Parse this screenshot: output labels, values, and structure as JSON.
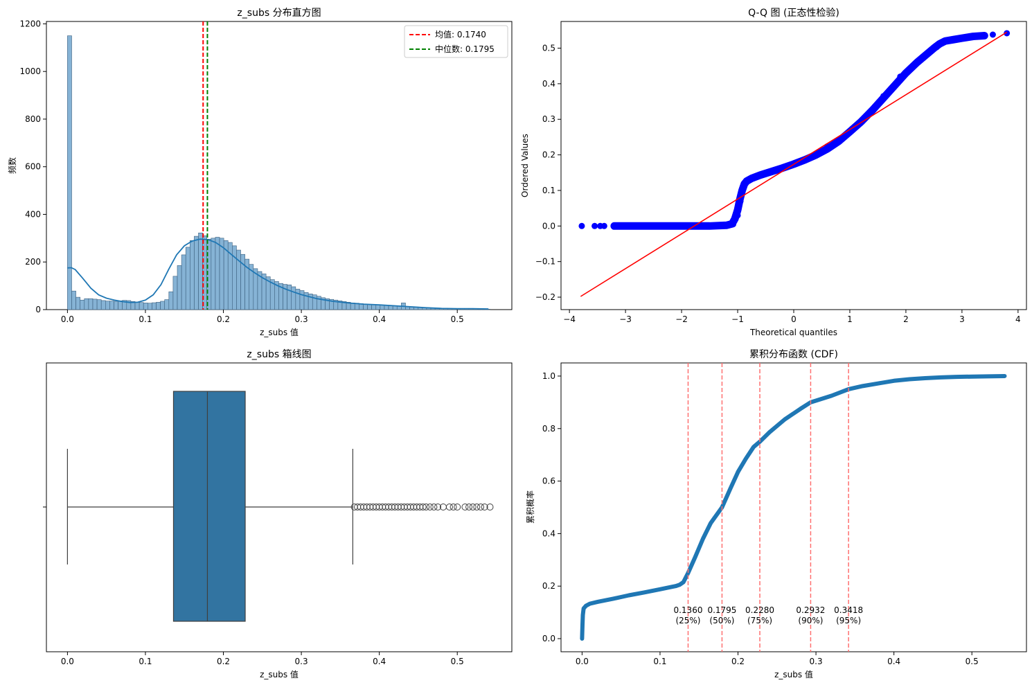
{
  "chart_data": [
    {
      "type": "histogram",
      "title": "z_subs 分布直方图",
      "xlabel": "z_subs 值",
      "ylabel": "频数",
      "xlim": [
        -0.027,
        0.57
      ],
      "ylim": [
        0,
        1210
      ],
      "xticks": [
        0.0,
        0.1,
        0.2,
        0.3,
        0.4,
        0.5
      ],
      "xtick_labels": [
        "0.0",
        "0.1",
        "0.2",
        "0.3",
        "0.4",
        "0.5"
      ],
      "yticks": [
        0,
        200,
        400,
        600,
        800,
        1000,
        1200
      ],
      "ytick_labels": [
        "0",
        "200",
        "400",
        "600",
        "800",
        "1000",
        "1200"
      ],
      "bin_start": 0.0,
      "bin_width": 0.00542,
      "counts": [
        1150,
        78,
        52,
        40,
        46,
        46,
        44,
        42,
        38,
        36,
        36,
        35,
        37,
        39,
        38,
        34,
        32,
        30,
        28,
        27,
        29,
        31,
        35,
        42,
        75,
        140,
        185,
        230,
        262,
        290,
        308,
        322,
        310,
        296,
        300,
        304,
        300,
        290,
        282,
        268,
        250,
        232,
        212,
        190,
        172,
        160,
        150,
        138,
        126,
        118,
        110,
        106,
        104,
        96,
        86,
        80,
        72,
        66,
        62,
        56,
        50,
        46,
        43,
        40,
        37,
        34,
        31,
        28,
        27,
        25,
        23,
        22,
        21,
        20,
        19,
        18,
        16,
        16,
        14,
        28,
        13,
        12,
        11,
        10,
        9,
        8,
        7,
        6,
        6,
        5,
        5,
        4,
        4,
        4,
        3,
        3,
        3,
        2,
        2,
        2
      ],
      "kde": [
        [
          0.0,
          175
        ],
        [
          0.005,
          176
        ],
        [
          0.01,
          168
        ],
        [
          0.02,
          130
        ],
        [
          0.03,
          90
        ],
        [
          0.04,
          62
        ],
        [
          0.05,
          48
        ],
        [
          0.06,
          40
        ],
        [
          0.07,
          34
        ],
        [
          0.08,
          30
        ],
        [
          0.09,
          31
        ],
        [
          0.1,
          40
        ],
        [
          0.11,
          62
        ],
        [
          0.12,
          105
        ],
        [
          0.13,
          170
        ],
        [
          0.14,
          230
        ],
        [
          0.15,
          268
        ],
        [
          0.16,
          288
        ],
        [
          0.17,
          296
        ],
        [
          0.18,
          294
        ],
        [
          0.19,
          282
        ],
        [
          0.2,
          260
        ],
        [
          0.21,
          232
        ],
        [
          0.22,
          205
        ],
        [
          0.23,
          178
        ],
        [
          0.24,
          155
        ],
        [
          0.25,
          134
        ],
        [
          0.26,
          116
        ],
        [
          0.27,
          100
        ],
        [
          0.28,
          86
        ],
        [
          0.29,
          74
        ],
        [
          0.3,
          63
        ],
        [
          0.32,
          46
        ],
        [
          0.34,
          35
        ],
        [
          0.36,
          28
        ],
        [
          0.38,
          23
        ],
        [
          0.4,
          20
        ],
        [
          0.42,
          16
        ],
        [
          0.44,
          12
        ],
        [
          0.46,
          8
        ],
        [
          0.48,
          5
        ],
        [
          0.5,
          4
        ],
        [
          0.52,
          4
        ],
        [
          0.54,
          3
        ]
      ],
      "vlines": [
        {
          "label": "均值: 0.1740",
          "x": 0.174,
          "color": "#ff0000"
        },
        {
          "label": "中位数: 0.1795",
          "x": 0.1795,
          "color": "#008000"
        }
      ],
      "colors": {
        "bar": "#86b3d5",
        "edge": "#3b5f7e",
        "kde": "#1f77b4"
      }
    },
    {
      "type": "scatter",
      "title": "Q-Q 图 (正态性检验)",
      "xlabel": "Theoretical quantiles",
      "ylabel": "Ordered Values",
      "xlim": [
        -4.15,
        4.15
      ],
      "ylim": [
        -0.235,
        0.575
      ],
      "xticks": [
        -4,
        -3,
        -2,
        -1,
        0,
        1,
        2,
        3,
        4
      ],
      "xtick_labels": [
        "−4",
        "−3",
        "−2",
        "−1",
        "0",
        "1",
        "2",
        "3",
        "4"
      ],
      "yticks": [
        -0.2,
        -0.1,
        0.0,
        0.1,
        0.2,
        0.3,
        0.4,
        0.5
      ],
      "ytick_labels": [
        "−0.2",
        "−0.1",
        "0.0",
        "0.1",
        "0.2",
        "0.3",
        "0.4",
        "0.5"
      ],
      "points": [
        [
          -3.78,
          0.0
        ],
        [
          -3.55,
          0.0
        ],
        [
          -3.45,
          0.0
        ],
        [
          -3.38,
          0.0
        ],
        [
          -1.08,
          0.005
        ],
        [
          -1.0,
          0.03
        ],
        [
          -0.95,
          0.07
        ],
        [
          -0.9,
          0.105
        ],
        [
          -0.86,
          0.12
        ],
        [
          -0.8,
          0.128
        ],
        [
          -0.7,
          0.136
        ],
        [
          -0.5,
          0.148
        ],
        [
          -0.2,
          0.163
        ],
        [
          0.0,
          0.174
        ],
        [
          0.3,
          0.195
        ],
        [
          0.6,
          0.224
        ],
        [
          1.0,
          0.265
        ],
        [
          1.3,
          0.31
        ],
        [
          1.6,
          0.365
        ],
        [
          1.9,
          0.42
        ],
        [
          2.2,
          0.46
        ],
        [
          2.35,
          0.48
        ],
        [
          2.55,
          0.503
        ],
        [
          2.7,
          0.52
        ],
        [
          2.9,
          0.525
        ],
        [
          3.1,
          0.532
        ],
        [
          3.2,
          0.534
        ],
        [
          3.4,
          0.536
        ],
        [
          3.55,
          0.538
        ],
        [
          3.8,
          0.542
        ]
      ],
      "curve": [
        [
          -3.2,
          0.0
        ],
        [
          -2.0,
          0.0
        ],
        [
          -1.5,
          0.0
        ],
        [
          -1.2,
          0.002
        ],
        [
          -1.1,
          0.006
        ],
        [
          -1.05,
          0.02
        ],
        [
          -1.0,
          0.045
        ],
        [
          -0.96,
          0.075
        ],
        [
          -0.92,
          0.1
        ],
        [
          -0.88,
          0.118
        ],
        [
          -0.84,
          0.126
        ],
        [
          -0.75,
          0.134
        ],
        [
          -0.6,
          0.143
        ],
        [
          -0.4,
          0.153
        ],
        [
          -0.2,
          0.163
        ],
        [
          0.0,
          0.174
        ],
        [
          0.2,
          0.186
        ],
        [
          0.4,
          0.2
        ],
        [
          0.6,
          0.217
        ],
        [
          0.8,
          0.238
        ],
        [
          1.0,
          0.265
        ],
        [
          1.2,
          0.293
        ],
        [
          1.4,
          0.325
        ],
        [
          1.6,
          0.36
        ],
        [
          1.8,
          0.395
        ],
        [
          2.0,
          0.43
        ],
        [
          2.2,
          0.46
        ],
        [
          2.35,
          0.48
        ],
        [
          2.5,
          0.5
        ],
        [
          2.6,
          0.512
        ],
        [
          2.7,
          0.52
        ],
        [
          2.85,
          0.524
        ],
        [
          3.0,
          0.528
        ],
        [
          3.2,
          0.533
        ],
        [
          3.4,
          0.535
        ]
      ],
      "fit_line": [
        [
          -3.8,
          -0.198
        ],
        [
          3.8,
          0.545
        ]
      ],
      "colors": {
        "points": "#0000ff",
        "line": "#ff0000"
      }
    },
    {
      "type": "boxplot",
      "title": "z_subs 箱线图",
      "xlabel": "z_subs 值",
      "xlim": [
        -0.027,
        0.57
      ],
      "xticks": [
        0.0,
        0.1,
        0.2,
        0.3,
        0.4,
        0.5
      ],
      "xtick_labels": [
        "0.0",
        "0.1",
        "0.2",
        "0.3",
        "0.4",
        "0.5"
      ],
      "whisker_low": 0.0,
      "q1": 0.136,
      "median": 0.1795,
      "q3": 0.228,
      "whisker_high": 0.366,
      "outliers": [
        0.368,
        0.372,
        0.376,
        0.38,
        0.384,
        0.388,
        0.392,
        0.396,
        0.4,
        0.404,
        0.408,
        0.412,
        0.416,
        0.42,
        0.424,
        0.428,
        0.432,
        0.436,
        0.44,
        0.444,
        0.448,
        0.452,
        0.456,
        0.46,
        0.465,
        0.47,
        0.475,
        0.482,
        0.49,
        0.495,
        0.5,
        0.51,
        0.515,
        0.52,
        0.525,
        0.53,
        0.535,
        0.542
      ],
      "colors": {
        "box": "#3274a1",
        "line": "#3f3f3f"
      }
    },
    {
      "type": "line",
      "title": "累积分布函数 (CDF)",
      "xlabel": "z_subs 值",
      "ylabel": "累积概率",
      "xlim": [
        -0.027,
        0.57
      ],
      "ylim": [
        -0.05,
        1.05
      ],
      "xticks": [
        0.0,
        0.1,
        0.2,
        0.3,
        0.4,
        0.5
      ],
      "xtick_labels": [
        "0.0",
        "0.1",
        "0.2",
        "0.3",
        "0.4",
        "0.5"
      ],
      "yticks": [
        0.0,
        0.2,
        0.4,
        0.6,
        0.8,
        1.0
      ],
      "ytick_labels": [
        "0.0",
        "0.2",
        "0.4",
        "0.6",
        "0.8",
        "1.0"
      ],
      "curve": [
        [
          0.0,
          0.0
        ],
        [
          0.0005,
          0.05
        ],
        [
          0.001,
          0.09
        ],
        [
          0.002,
          0.115
        ],
        [
          0.005,
          0.125
        ],
        [
          0.01,
          0.133
        ],
        [
          0.02,
          0.14
        ],
        [
          0.04,
          0.152
        ],
        [
          0.06,
          0.165
        ],
        [
          0.08,
          0.176
        ],
        [
          0.1,
          0.188
        ],
        [
          0.115,
          0.197
        ],
        [
          0.12,
          0.2
        ],
        [
          0.125,
          0.205
        ],
        [
          0.13,
          0.215
        ],
        [
          0.136,
          0.25
        ],
        [
          0.145,
          0.31
        ],
        [
          0.155,
          0.38
        ],
        [
          0.165,
          0.44
        ],
        [
          0.1795,
          0.5
        ],
        [
          0.19,
          0.57
        ],
        [
          0.2,
          0.635
        ],
        [
          0.21,
          0.685
        ],
        [
          0.22,
          0.73
        ],
        [
          0.228,
          0.75
        ],
        [
          0.24,
          0.785
        ],
        [
          0.26,
          0.835
        ],
        [
          0.28,
          0.875
        ],
        [
          0.2932,
          0.9
        ],
        [
          0.32,
          0.925
        ],
        [
          0.3418,
          0.95
        ],
        [
          0.36,
          0.962
        ],
        [
          0.38,
          0.972
        ],
        [
          0.4,
          0.982
        ],
        [
          0.42,
          0.988
        ],
        [
          0.44,
          0.992
        ],
        [
          0.46,
          0.995
        ],
        [
          0.48,
          0.997
        ],
        [
          0.5,
          0.998
        ],
        [
          0.52,
          0.999
        ],
        [
          0.542,
          1.0
        ]
      ],
      "percentiles": [
        {
          "value": 0.136,
          "value_label": "0.1360",
          "pct_label": "(25%)"
        },
        {
          "value": 0.1795,
          "value_label": "0.1795",
          "pct_label": "(50%)"
        },
        {
          "value": 0.228,
          "value_label": "0.2280",
          "pct_label": "(75%)"
        },
        {
          "value": 0.2932,
          "value_label": "0.2932",
          "pct_label": "(90%)"
        },
        {
          "value": 0.3418,
          "value_label": "0.3418",
          "pct_label": "(95%)"
        }
      ],
      "colors": {
        "line": "#1f77b4",
        "vline": "#ff7070"
      }
    }
  ]
}
